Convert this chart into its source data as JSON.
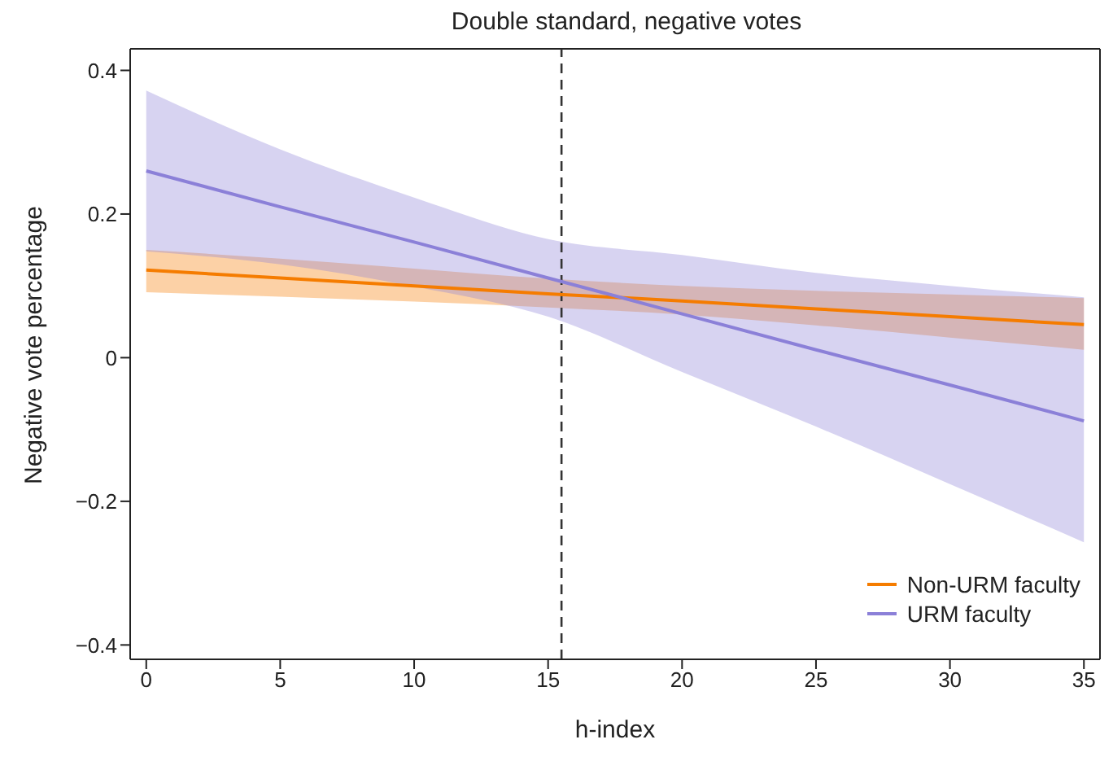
{
  "chart_data": {
    "type": "line",
    "title": "Double standard, negative votes",
    "xlabel": "h-index",
    "ylabel": "Negative vote percentage",
    "x": [
      0,
      5,
      10,
      15,
      20,
      25,
      30,
      35
    ],
    "series": [
      {
        "name": "Non-URM faculty",
        "color": "#f57c00",
        "values": [
          0.122,
          0.111,
          0.1,
          0.089,
          0.079,
          0.068,
          0.057,
          0.046
        ],
        "lower": [
          0.091,
          0.085,
          0.078,
          0.07,
          0.06,
          0.045,
          0.028,
          0.011
        ],
        "upper": [
          0.15,
          0.138,
          0.124,
          0.11,
          0.1,
          0.093,
          0.088,
          0.083
        ]
      },
      {
        "name": "URM faculty",
        "color": "#8b80d8",
        "values": [
          0.26,
          0.21,
          0.161,
          0.111,
          0.061,
          0.011,
          -0.038,
          -0.088
        ],
        "lower": [
          0.148,
          0.13,
          0.099,
          0.057,
          -0.02,
          -0.096,
          -0.176,
          -0.257
        ],
        "upper": [
          0.372,
          0.29,
          0.223,
          0.165,
          0.143,
          0.118,
          0.1,
          0.084
        ]
      }
    ],
    "xlim": [
      -0.6,
      35.6
    ],
    "xticks": [
      0,
      5,
      10,
      15,
      20,
      25,
      30,
      35
    ],
    "ylim": [
      -0.42,
      0.43
    ],
    "yticks": [
      {
        "value": -0.4,
        "label": "−0.4"
      },
      {
        "value": -0.2,
        "label": "−0.2"
      },
      0,
      0.2,
      0.4
    ],
    "ref_lines": [
      {
        "axis": "x",
        "value": 15.5,
        "label": null,
        "color": "#333333",
        "line_style": "dashed"
      }
    ],
    "legend": "bottom right",
    "grid": false,
    "marker": "none",
    "line_style": "solid"
  }
}
